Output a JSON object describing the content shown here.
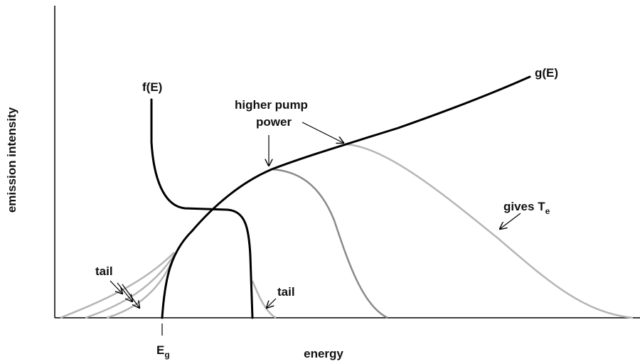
{
  "axes": {
    "y_label": "emission intensity",
    "x_label": "energy"
  },
  "curves": {
    "f": "f(E)",
    "g": "g(E)"
  },
  "annotations": {
    "higher_pump": [
      "higher pump",
      "power"
    ],
    "gives_te": {
      "text": "gives T",
      "sub": "e"
    },
    "tail_left": "tail",
    "tail_right": "tail",
    "band_gap": {
      "text": "E",
      "sub": "g"
    }
  }
}
